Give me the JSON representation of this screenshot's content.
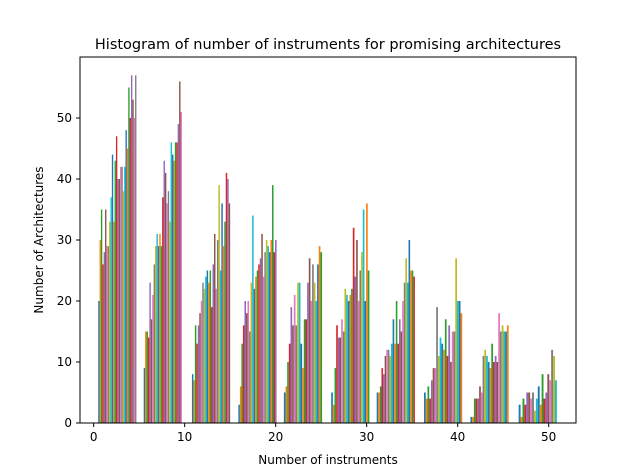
{
  "chart_data": {
    "type": "bar",
    "title": "Histogram of number of instruments for promising architectures",
    "xlabel": "Number of instruments",
    "ylabel": "Number of Architectures",
    "xlim": [
      -1.5,
      53
    ],
    "ylim": [
      0,
      60
    ],
    "xticks": [
      0,
      10,
      20,
      30,
      40,
      50
    ],
    "yticks": [
      0,
      10,
      20,
      30,
      40,
      50
    ],
    "grid": false,
    "group_starts": [
      0.5,
      5.5,
      10.8,
      15.9,
      20.9,
      26.1,
      31.1,
      36.3,
      41.4,
      46.7
    ],
    "group_width": 4.2,
    "series_colors": [
      "#1f77b4",
      "#ff7f0e",
      "#2ca02c",
      "#d62728",
      "#9467bd",
      "#8c564b",
      "#e377c2",
      "#7f7f7f",
      "#bcbd22",
      "#17becf"
    ],
    "groups": [
      [
        20,
        30,
        35,
        26,
        28,
        35,
        29,
        29,
        33,
        37,
        44,
        33,
        43,
        47,
        40,
        40,
        42,
        42,
        38,
        42,
        48,
        45,
        55,
        50,
        57,
        53,
        50,
        57
      ],
      [
        9,
        15,
        15,
        14,
        23,
        17,
        21,
        26,
        29,
        31,
        29,
        31,
        29,
        37,
        43,
        41,
        36,
        38,
        33,
        46,
        44,
        43,
        46,
        46,
        49,
        56,
        51
      ],
      [
        8,
        7,
        16,
        13,
        16,
        18,
        20,
        23,
        22,
        24,
        25,
        23,
        25,
        19,
        26,
        31,
        22,
        30,
        39,
        25,
        36,
        29,
        33,
        41,
        40,
        36
      ],
      [
        3,
        6,
        13,
        16,
        20,
        18,
        20,
        15,
        23,
        34,
        22,
        24,
        25,
        26,
        27,
        31,
        24,
        28,
        30,
        29,
        28,
        30,
        39,
        28,
        30
      ],
      [
        5,
        6,
        10,
        13,
        19,
        16,
        21,
        16,
        23,
        23,
        13,
        9,
        17,
        17,
        23,
        27,
        20,
        26,
        23,
        20,
        26,
        29,
        28
      ],
      [
        5,
        3,
        9,
        16,
        14,
        14,
        17,
        15,
        22,
        21,
        20,
        21,
        22,
        32,
        24,
        30,
        20,
        25,
        28,
        35,
        20,
        36,
        25
      ],
      [
        5,
        5,
        6,
        9,
        8,
        11,
        12,
        12,
        11,
        13,
        17,
        13,
        20,
        13,
        17,
        15,
        20,
        23,
        27,
        23,
        30,
        25,
        25,
        24
      ],
      [
        5,
        4,
        6,
        4,
        7,
        9,
        9,
        19,
        11,
        14,
        13,
        12,
        17,
        11,
        16,
        10,
        15,
        15,
        27,
        20,
        20,
        18
      ],
      [
        1,
        1,
        4,
        4,
        4,
        6,
        5,
        11,
        12,
        11,
        10,
        9,
        13,
        10,
        11,
        10,
        18,
        15,
        16,
        15,
        15,
        16
      ],
      [
        3,
        1,
        4,
        3,
        5,
        5,
        4,
        5,
        2,
        4,
        6,
        3,
        8,
        4,
        5,
        8,
        7,
        12,
        11,
        7
      ]
    ]
  }
}
